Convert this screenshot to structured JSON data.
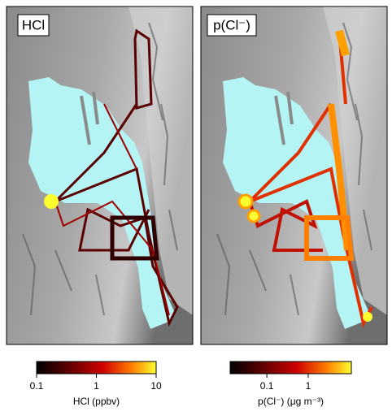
{
  "panels": [
    {
      "title": "HCl",
      "colorbar": {
        "label": "HCl (ppbv)",
        "lim": [
          0.1,
          10
        ],
        "ticks": [
          0.1,
          1,
          10
        ],
        "log": true
      }
    },
    {
      "title": "p(Cl⁻)",
      "colorbar": {
        "label": "p(Cl⁻) (μg m⁻³)",
        "lim": [
          0.013,
          11
        ],
        "ticks": [
          0.1,
          1
        ],
        "log": true
      }
    }
  ]
}
